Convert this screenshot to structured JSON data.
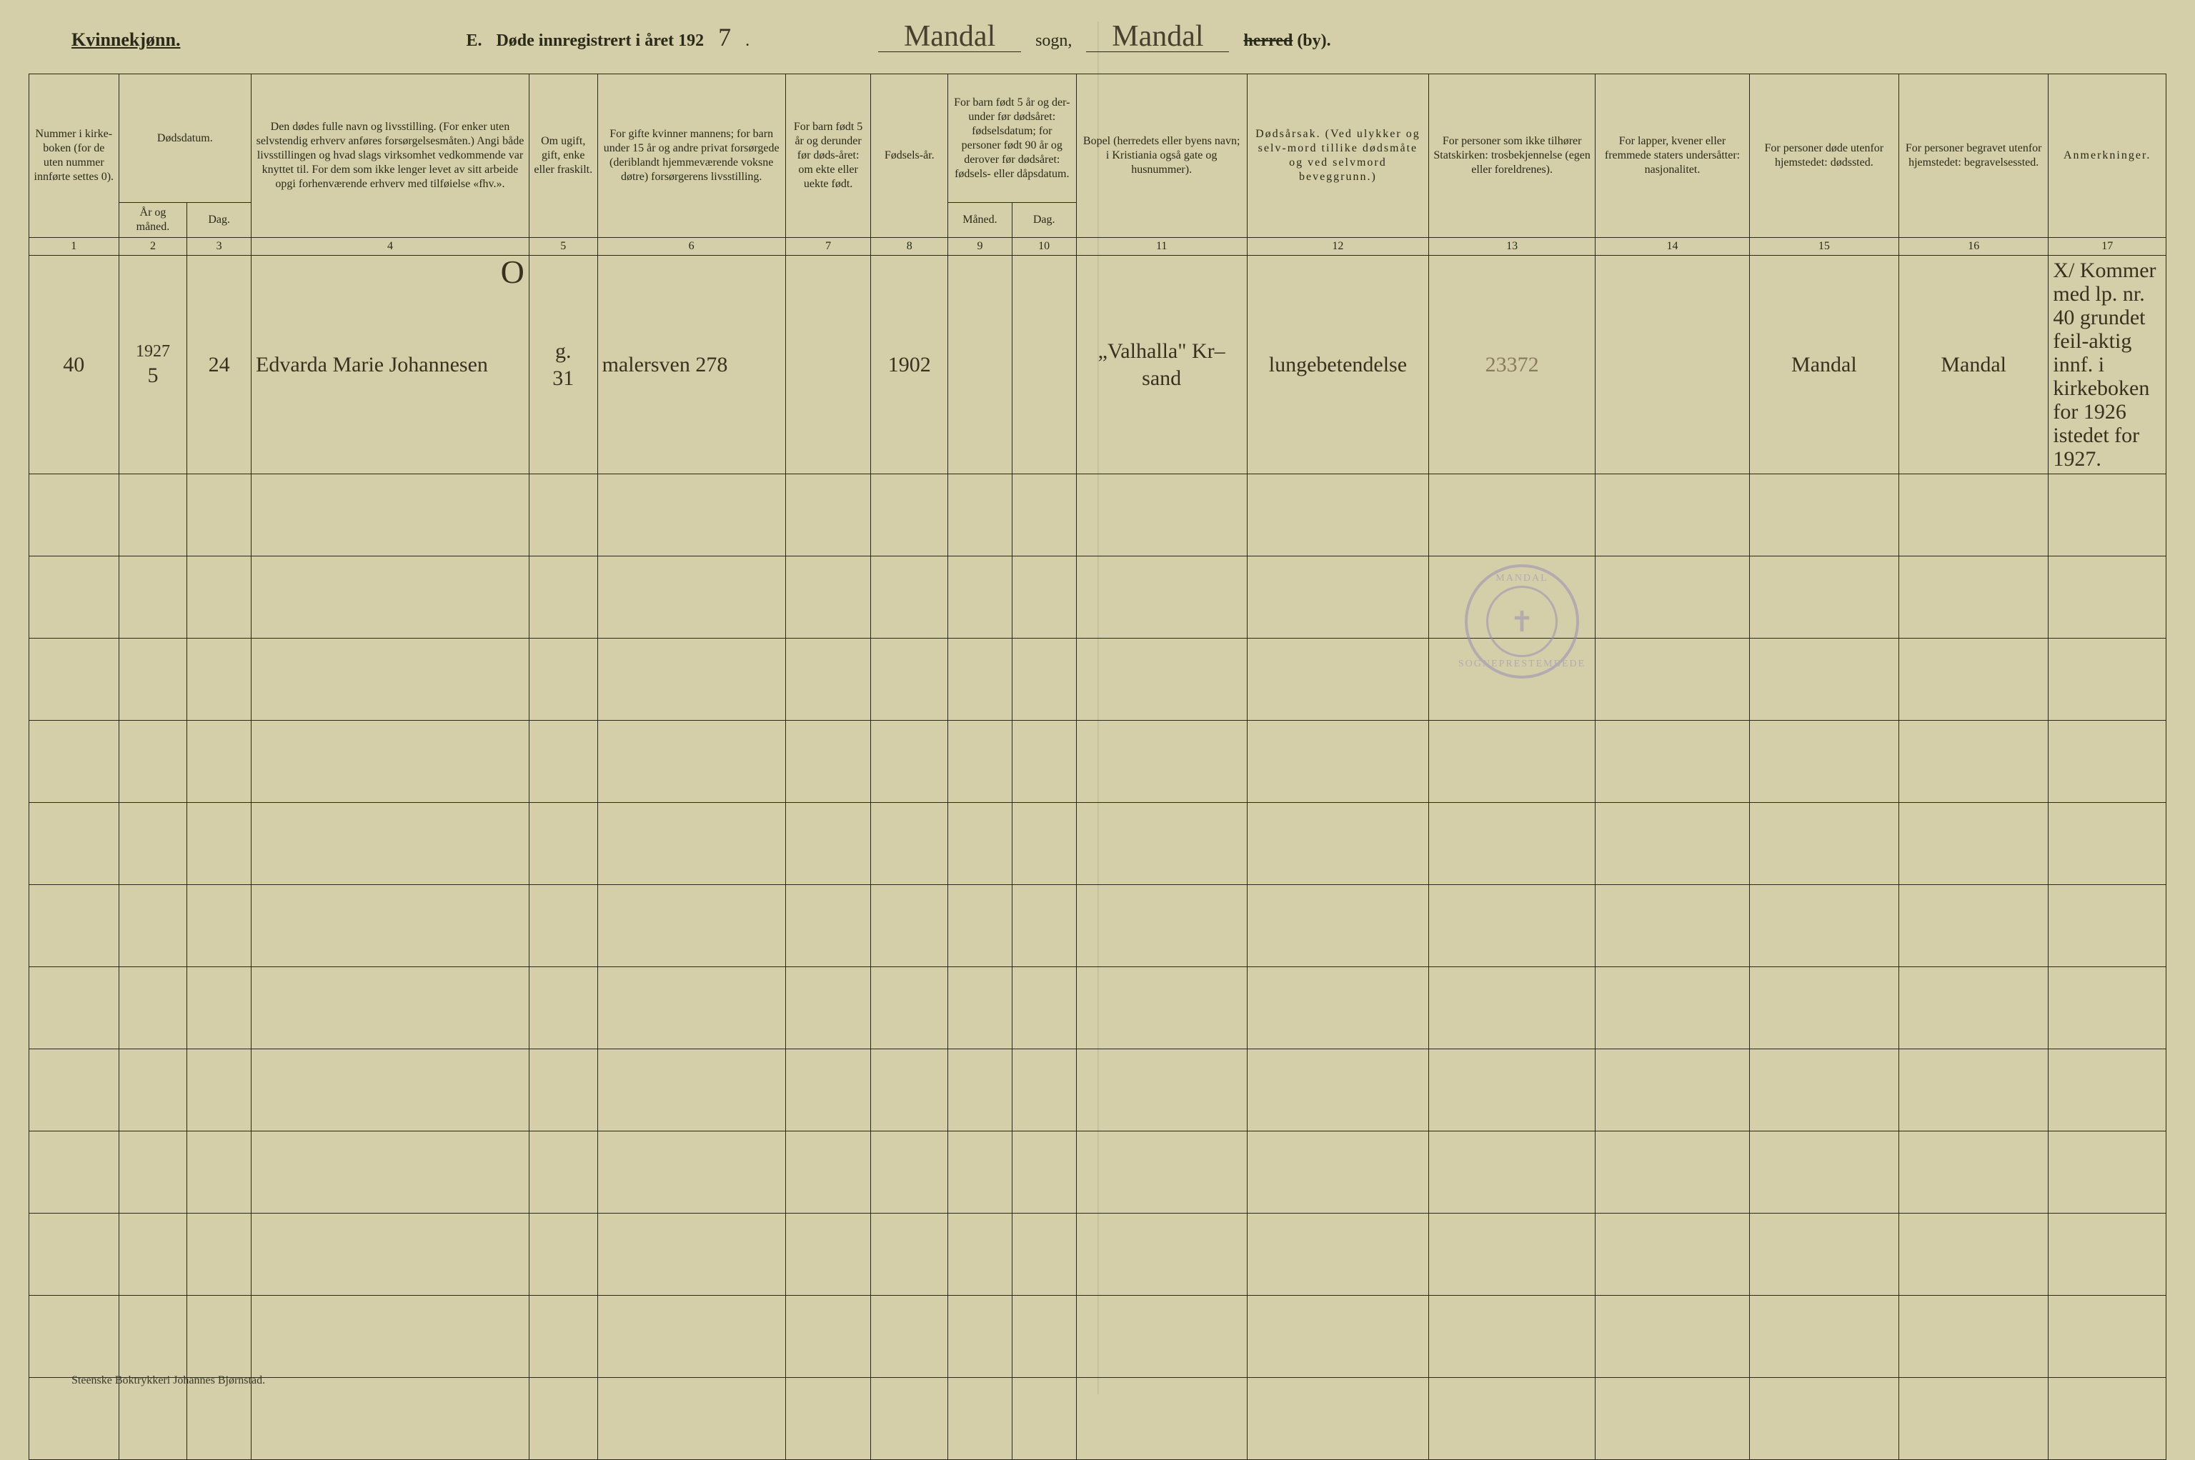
{
  "header": {
    "gender_label": "Kvinnekjønn.",
    "section_letter": "E.",
    "title_prefix": "Døde innregistrert i året 192",
    "year_suffix": "7",
    "sogn_value": "Mandal",
    "sogn_label": "sogn,",
    "herred_value": "Mandal",
    "herred_strike": "herred",
    "by_label": "(by)."
  },
  "columns": {
    "c1": "Nummer i kirke-boken (for de uten nummer innførte settes 0).",
    "c2_main": "Dødsdatum.",
    "c2a": "År og måned.",
    "c2b": "Dag.",
    "c4": "Den dødes fulle navn og livsstilling. (For enker uten selvstendig erhverv anføres forsørgelsesmåten.) Angi både livsstillingen og hvad slags virksomhet vedkommende var knyttet til. For dem som ikke lenger levet av sitt arbeide opgi forhenværende erhverv med tilføielse «fhv.».",
    "c5": "Om ugift, gift, enke eller fraskilt.",
    "c6": "For gifte kvinner mannens; for barn under 15 år og andre privat forsørgede (deriblandt hjemmeværende voksne døtre) forsørgerens livsstilling.",
    "c7": "For barn født 5 år og derunder før døds-året: om ekte eller uekte født.",
    "c8": "Fødsels-år.",
    "c9_main": "For barn født 5 år og der-under før dødsåret: fødselsdatum; for personer født 90 år og derover før dødsåret: fødsels- eller dåpsdatum.",
    "c9a": "Måned.",
    "c9b": "Dag.",
    "c11": "Bopel (herredets eller byens navn; i Kristiania også gate og husnummer).",
    "c12": "Dødsårsak. (Ved ulykker og selv-mord tillike dødsmåte og ved selvmord beveggrunn.)",
    "c13": "For personer som ikke tilhører Statskirken: trosbekjennelse (egen eller foreldrenes).",
    "c14": "For lapper, kvener eller fremmede staters undersåtter: nasjonalitet.",
    "c15": "For personer døde utenfor hjemstedet: dødssted.",
    "c16": "For personer begravet utenfor hjemstedet: begravelsessted.",
    "c17": "Anmerkninger."
  },
  "col_nums": [
    "1",
    "2",
    "3",
    "4",
    "5",
    "6",
    "7",
    "8",
    "9",
    "10",
    "11",
    "12",
    "13",
    "14",
    "15",
    "16",
    "17"
  ],
  "col_widths_pct": [
    4.2,
    3.2,
    3.0,
    13.0,
    3.2,
    8.8,
    4.0,
    3.6,
    3.0,
    3.0,
    8.0,
    8.5,
    7.8,
    7.2,
    7.0,
    7.0,
    5.5
  ],
  "row": {
    "year_above": "1927",
    "num": "40",
    "month": "5",
    "day": "24",
    "name": "Edvarda Marie Johannesen",
    "status": "g.",
    "status_sub": "31",
    "spouse": "malersven 278",
    "ekte": "",
    "birth_year": "1902",
    "birth_m": "",
    "birth_d": "",
    "bopel": "„Valhalla\" Kr–sand",
    "cause": "lungebetendelse",
    "tros": "23372",
    "nasj": "",
    "dsted": "Mandal",
    "begr": "Mandal",
    "anm": "X/ Kommer med lp. nr. 40 grundet feil-aktig innf. i kirkeboken for 1926 istedet for 1927."
  },
  "empty_rows": 12,
  "stamp": {
    "top": "MANDAL",
    "bottom": "SOGNEPRESTEMBEDE",
    "symbol": "✝"
  },
  "footer": "Steenske Boktrykkeri Johannes Bjørnstad.",
  "colors": {
    "paper": "#d4cfa8",
    "ink": "#2a2a1a",
    "hand": "#3a3020",
    "stamp": "#9a8fb5"
  }
}
